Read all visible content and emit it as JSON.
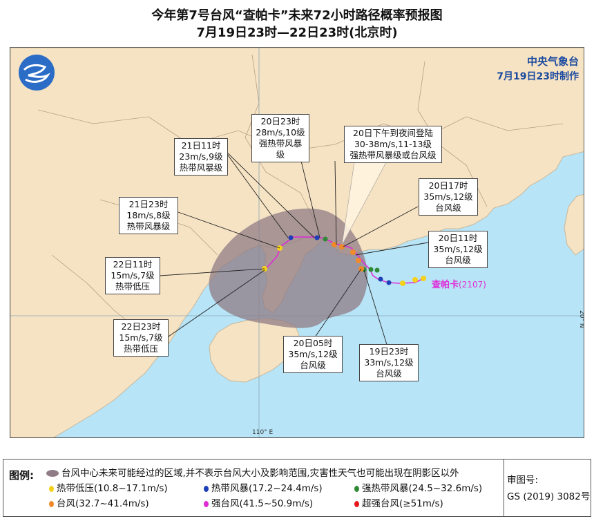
{
  "title_line1": "今年第7号台风“查帕卡”未来72小时路径概率预报图",
  "title_line2": "7月19日23时—22日23时(北京时)",
  "issuer": {
    "org": "中央气象台",
    "time": "7月19日23时制作"
  },
  "colors": {
    "sea": "#b7e4f6",
    "land": "#f6e3c3",
    "cone": "#8f7c86",
    "grid": "#8aa6b8",
    "track": "#e02ad8",
    "td": "#f4d11a",
    "ts": "#1f3fb8",
    "sts": "#2f8a35",
    "ty": "#f08a2a",
    "sty": "#e02ad8",
    "superty": "#e8171c"
  },
  "typhoon_name": "查帕卡",
  "typhoon_number": "(2107)",
  "axis": {
    "lon_label": "110° E",
    "lat_label": "20° N"
  },
  "forecast_points": [
    {
      "time": "19日23时",
      "wind": "33m/s,12级",
      "level": "台风级"
    },
    {
      "time": "20日05时",
      "wind": "35m/s,12级",
      "level": "台风级"
    },
    {
      "time": "20日11时",
      "wind": "35m/s,12级",
      "level": "台风级"
    },
    {
      "time": "20日17时",
      "wind": "35m/s,12级",
      "level": "台风级"
    },
    {
      "time": "20日23时",
      "wind": "28m/s,10级",
      "level": "强热带风暴级"
    },
    {
      "time": "21日11时",
      "wind": "23m/s,9级",
      "level": "热带风暴级"
    },
    {
      "time": "21日23时",
      "wind": "18m/s,8级",
      "level": "热带风暴级"
    },
    {
      "time": "22日11时",
      "wind": "15m/s,7级",
      "level": "热带低压"
    },
    {
      "time": "22日23时",
      "wind": "15m/s,7级",
      "level": "热带低压"
    }
  ],
  "landfall": {
    "line1": "20日下午到夜间登陆",
    "line2": "30-38m/s,11-13级",
    "line3": "强热带风暴级或台风级"
  },
  "legend": {
    "title": "图例:",
    "cone_text": "台风中心未来可能经过的区域,并不表示台风大小及影响范围,灾害性天气也可能出现在阴影区以外",
    "items": [
      {
        "label": "热带低压(10.8~17.1m/s)",
        "color": "#f4d11a"
      },
      {
        "label": "热带风暴(17.2~24.4m/s)",
        "color": "#1f3fb8"
      },
      {
        "label": "强热带风暴(24.5~32.6m/s)",
        "color": "#2f8a35"
      },
      {
        "label": "台风(32.7~41.4m/s)",
        "color": "#f08a2a"
      },
      {
        "label": "强台风(41.5~50.9m/s)",
        "color": "#e02ad8"
      },
      {
        "label": "超强台风(≥51m/s)",
        "color": "#e8171c"
      }
    ],
    "review_label": "审图号:",
    "review_code": "GS (2019) 3082号"
  }
}
